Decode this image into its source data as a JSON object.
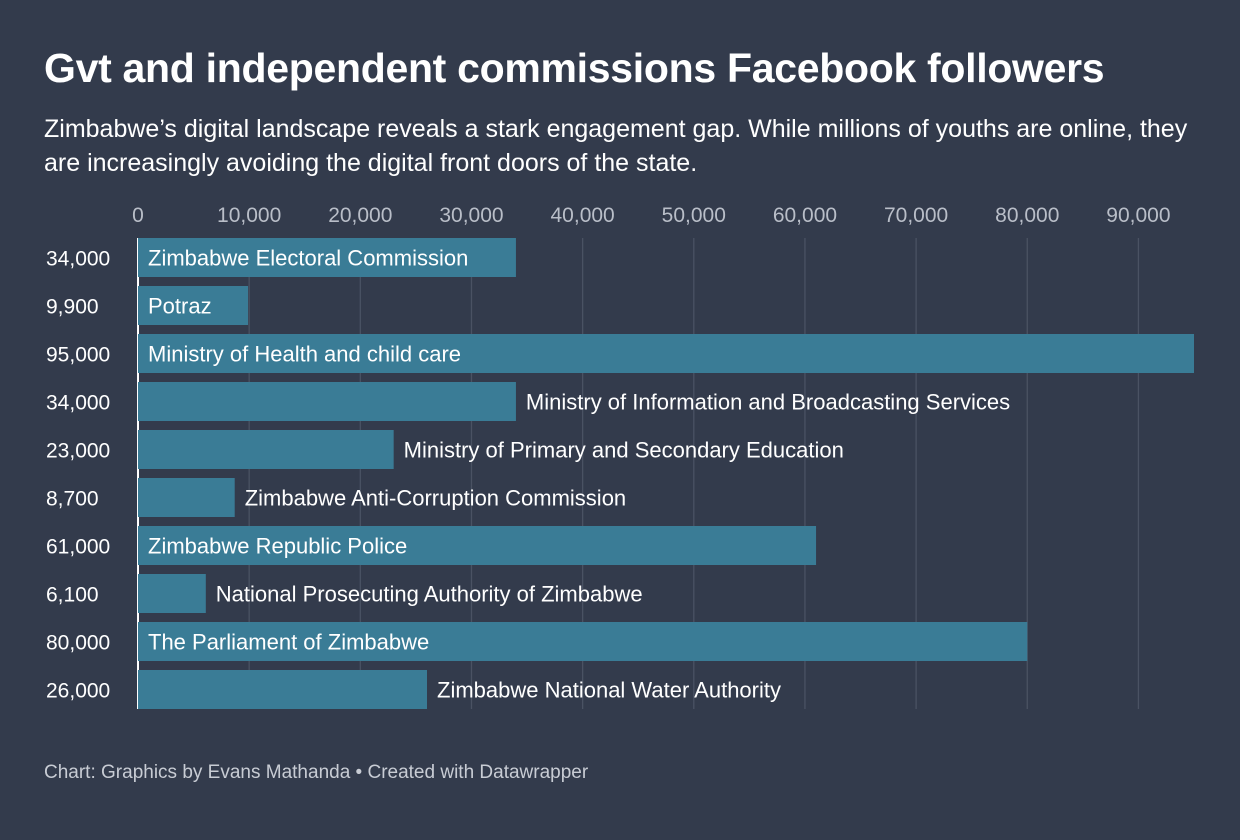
{
  "title": "Gvt and independent commissions Facebook followers",
  "subtitle": "Zimbabwe’s digital landscape reveals a stark engagement gap. While millions of youths are online, they are increasingly avoiding the digital front doors of the state.",
  "footer": "Chart: Graphics by Evans Mathanda • Created with Datawrapper",
  "colors": {
    "background": "#333b4c",
    "bar": "#3a7c96",
    "grid": "#4a5263"
  },
  "chart_data": {
    "type": "bar",
    "orientation": "horizontal",
    "title": "Gvt and independent commissions Facebook followers",
    "xlim": [
      0,
      95000
    ],
    "x_ticks": [
      0,
      10000,
      20000,
      30000,
      40000,
      50000,
      60000,
      70000,
      80000,
      90000
    ],
    "x_tick_labels": [
      "0",
      "10,000",
      "20,000",
      "30,000",
      "40,000",
      "50,000",
      "60,000",
      "70,000",
      "80,000",
      "90,000"
    ],
    "grid": true,
    "categories": [
      "Zimbabwe Electoral Commission",
      "Potraz",
      "Ministry of Health and child care",
      "Ministry of Information and Broadcasting Services",
      "Ministry of Primary and Secondary Education",
      "Zimbabwe Anti-Corruption Commission",
      "Zimbabwe Republic Police",
      "National Prosecuting Authority of Zimbabwe",
      "The Parliament of Zimbabwe",
      "Zimbabwe National Water Authority"
    ],
    "values": [
      34000,
      9900,
      95000,
      34000,
      23000,
      8700,
      61000,
      6100,
      80000,
      26000
    ],
    "value_labels": [
      "34,000",
      "9,900",
      "95,000",
      "34,000",
      "23,000",
      "8,700",
      "61,000",
      "6,100",
      "80,000",
      "26,000"
    ]
  }
}
